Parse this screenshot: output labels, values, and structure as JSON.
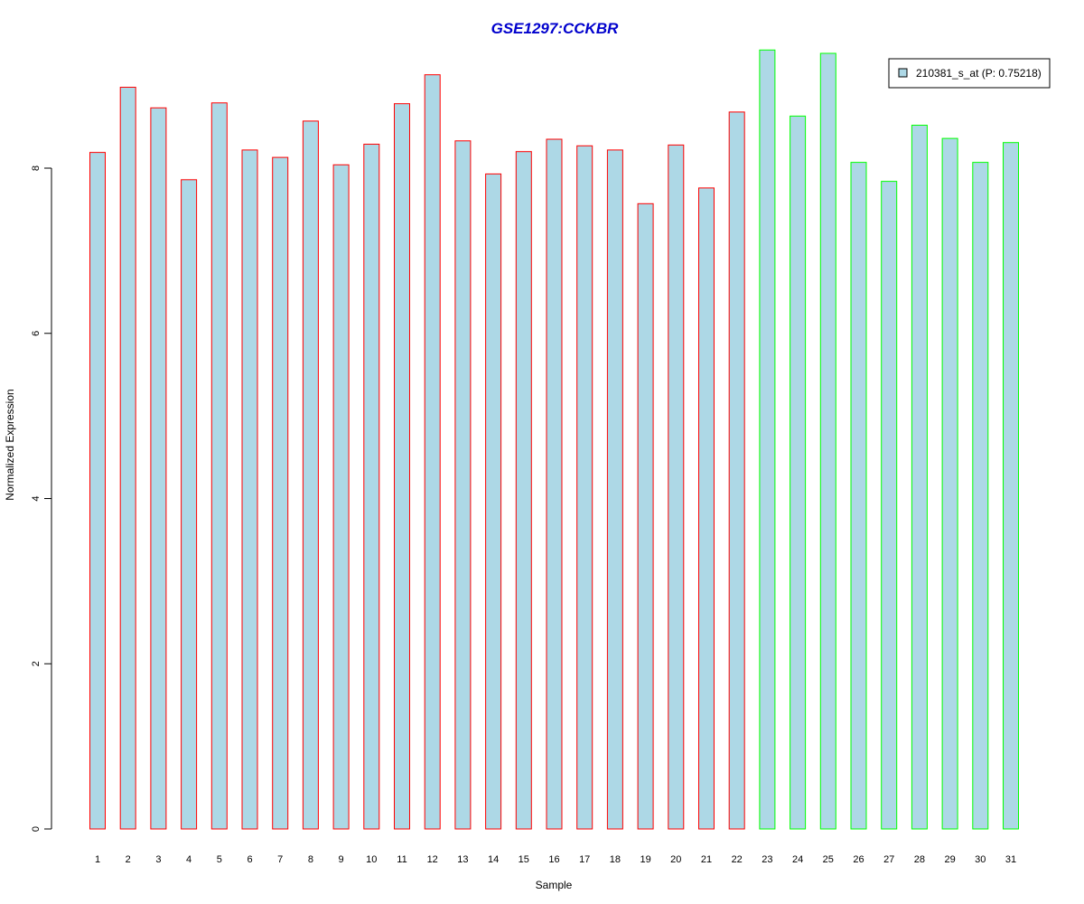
{
  "chart_data": {
    "type": "bar",
    "title": "GSE1297:CCKBR",
    "xlabel": "Sample",
    "ylabel": "Normalized Expression",
    "ylim": [
      0,
      9.5
    ],
    "yticks": [
      0,
      2,
      4,
      6,
      8
    ],
    "grid": false,
    "legend_position": "top-right",
    "categories": [
      "1",
      "2",
      "3",
      "4",
      "5",
      "6",
      "7",
      "8",
      "9",
      "10",
      "11",
      "12",
      "13",
      "14",
      "15",
      "16",
      "17",
      "18",
      "19",
      "20",
      "21",
      "22",
      "23",
      "24",
      "25",
      "26",
      "27",
      "28",
      "29",
      "30",
      "31"
    ],
    "series": [
      {
        "name": "210381_s_at (P: 0.75218)",
        "values": [
          8.19,
          8.98,
          8.73,
          7.86,
          8.79,
          8.22,
          8.13,
          8.57,
          8.04,
          8.29,
          8.78,
          9.13,
          8.33,
          7.93,
          8.2,
          8.35,
          8.27,
          8.22,
          7.57,
          8.28,
          7.76,
          8.68,
          9.43,
          8.63,
          9.39,
          8.07,
          7.84,
          8.52,
          8.36,
          8.07,
          8.31
        ],
        "group": [
          1,
          1,
          1,
          1,
          1,
          1,
          1,
          1,
          1,
          1,
          1,
          1,
          1,
          1,
          1,
          1,
          1,
          1,
          1,
          1,
          1,
          1,
          2,
          2,
          2,
          2,
          2,
          2,
          2,
          2,
          2
        ]
      }
    ],
    "colors": {
      "bar_fill": "#add8e6",
      "group1_border": "#ff0000",
      "group2_border": "#00ff00",
      "title": "#0000cd",
      "axis": "#000000"
    }
  }
}
